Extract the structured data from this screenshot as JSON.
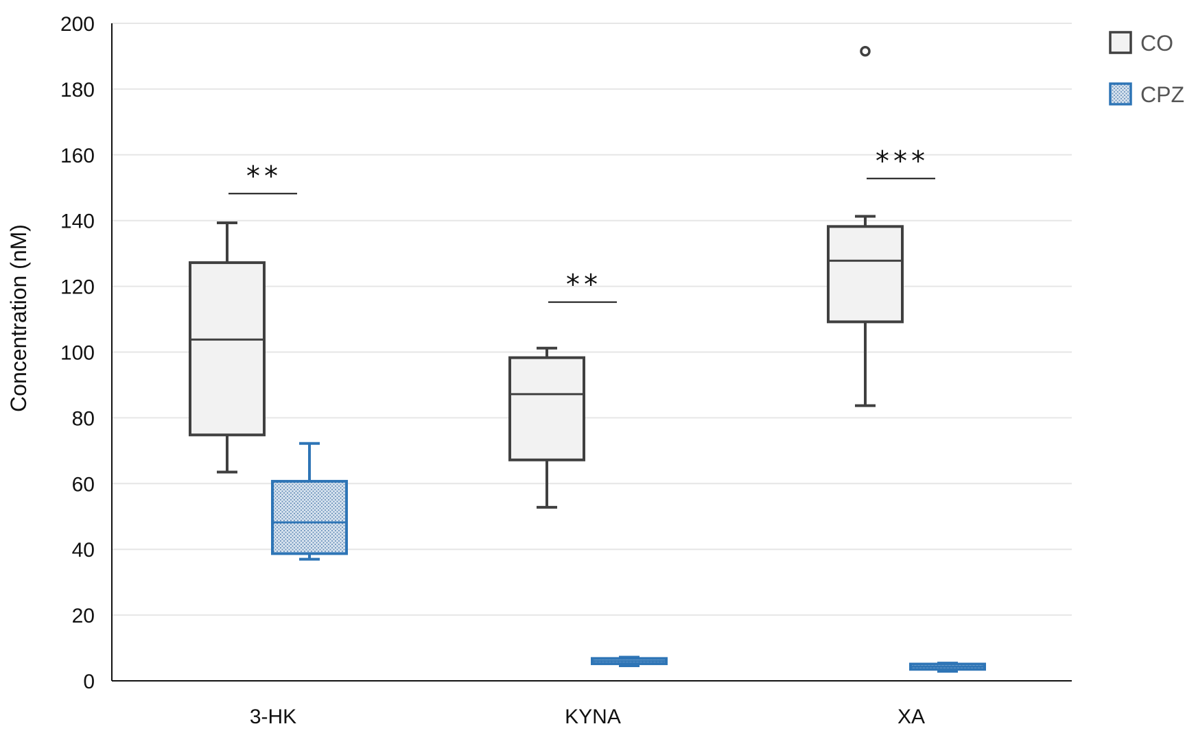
{
  "chart_data": {
    "type": "box",
    "title": "",
    "xlabel": "",
    "ylabel": "Concentration (nM)",
    "ylim": [
      0,
      200
    ],
    "yticks": [
      0,
      20,
      40,
      60,
      80,
      100,
      120,
      140,
      160,
      180,
      200
    ],
    "ytick_labels": [
      "0",
      "20",
      "40",
      "60",
      "80",
      "100",
      "120",
      "140",
      "160",
      "180",
      "200"
    ],
    "grid": true,
    "legend_position": "top-right",
    "categories": [
      "3-HK",
      "KYNA",
      "XA"
    ],
    "series": [
      {
        "name": "CO",
        "color": "#404040",
        "fill": "#f2f2f2",
        "pattern": "none",
        "boxes": [
          {
            "min": 63.5,
            "q1": 74.8,
            "median": 103.8,
            "q3": 127.2,
            "max": 139.3,
            "outliers": []
          },
          {
            "min": 52.8,
            "q1": 67.2,
            "median": 87.2,
            "q3": 98.3,
            "max": 101.2,
            "outliers": []
          },
          {
            "min": 83.7,
            "q1": 109.2,
            "median": 127.8,
            "q3": 138.2,
            "max": 141.3,
            "outliers": [
              191.5
            ]
          }
        ]
      },
      {
        "name": "CPZ",
        "color": "#2e75b6",
        "fill": "#b7cbe0",
        "pattern": "dots",
        "boxes": [
          {
            "min": 37.0,
            "q1": 38.7,
            "median": 48.2,
            "q3": 60.7,
            "max": 72.2,
            "outliers": []
          },
          {
            "min": 4.6,
            "q1": 5.2,
            "median": 6.0,
            "q3": 6.8,
            "max": 7.2,
            "outliers": []
          },
          {
            "min": 2.9,
            "q1": 3.5,
            "median": 4.3,
            "q3": 5.1,
            "max": 5.4,
            "outliers": []
          }
        ]
      }
    ],
    "annotations": [
      {
        "category": "3-HK",
        "text": "**",
        "y": 148.2
      },
      {
        "category": "KYNA",
        "text": "**",
        "y": 115.2
      },
      {
        "category": "XA",
        "text": "***",
        "y": 152.8
      }
    ]
  }
}
